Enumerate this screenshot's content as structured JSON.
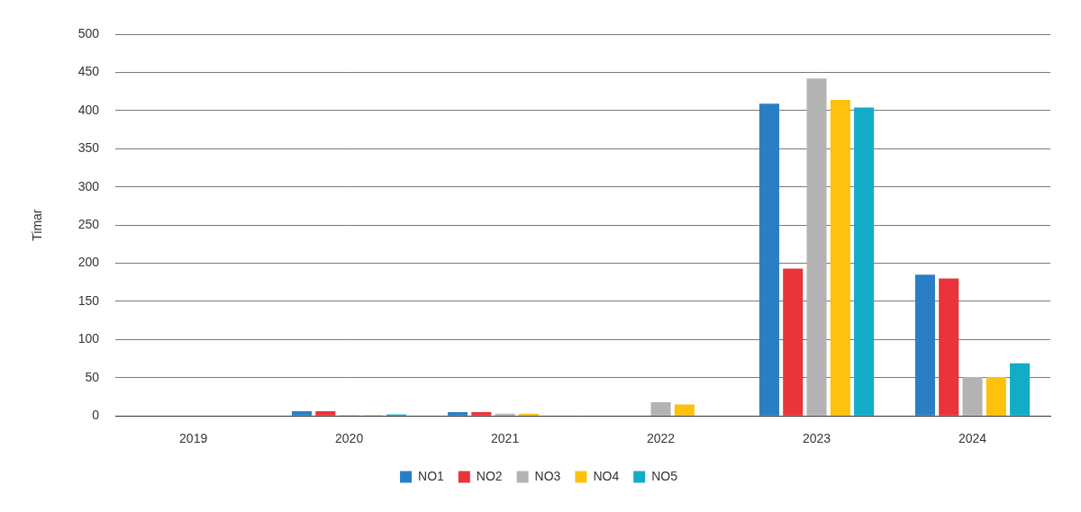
{
  "chart_data": {
    "type": "bar",
    "y_label": "Timar",
    "categories": [
      "2019",
      "2020",
      "2021",
      "2022",
      "2023",
      "2024"
    ],
    "series": [
      {
        "name": "NO1",
        "color": "#2a7fc4",
        "values": [
          0,
          6,
          5,
          0,
          409,
          185
        ]
      },
      {
        "name": "NO2",
        "color": "#e8343a",
        "values": [
          0,
          6,
          5,
          0,
          193,
          180
        ]
      },
      {
        "name": "NO3",
        "color": "#b3b3b3",
        "values": [
          0,
          1,
          3,
          18,
          442,
          51
        ]
      },
      {
        "name": "NO4",
        "color": "#fdc10e",
        "values": [
          0,
          1,
          3,
          15,
          414,
          51
        ]
      },
      {
        "name": "NO5",
        "color": "#13acc8",
        "values": [
          0,
          2,
          0,
          0,
          404,
          69
        ]
      }
    ],
    "ylim": [
      0,
      500
    ],
    "yticks": [
      0,
      50,
      100,
      150,
      200,
      250,
      300,
      350,
      400,
      450,
      500
    ],
    "grid": true,
    "legend": "bottom"
  }
}
